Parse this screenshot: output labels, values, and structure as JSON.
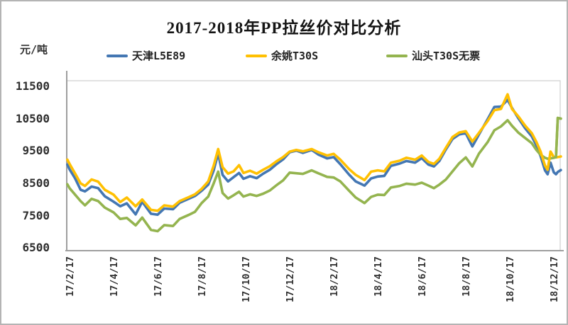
{
  "chart": {
    "title": "2017-2018年PP拉丝价对比分析",
    "unit_label": "元/吨",
    "legend": [
      {
        "label": "天津L5E89",
        "color": "#4477B3"
      },
      {
        "label": "余姚T30S",
        "color": "#FFC002"
      },
      {
        "label": "汕头T30S无票",
        "color": "#94B44F"
      }
    ]
  },
  "chart_data": {
    "type": "line",
    "title": "2017-2018年PP拉丝价对比分析",
    "ylabel": "元/吨",
    "xlabel": "",
    "ylim": [
      6500,
      11500
    ],
    "grid": false,
    "legend_position": "top",
    "y_ticks": [
      6500,
      7500,
      8500,
      9500,
      10500,
      11500
    ],
    "x_tick_labels": [
      "17/2/17",
      "17/4/17",
      "17/6/17",
      "17/8/17",
      "17/10/17",
      "17/12/17",
      "18/2/17",
      "18/4/17",
      "18/6/17",
      "18/8/17",
      "18/10/17",
      "18/12/17"
    ],
    "x_tick_months": [
      0,
      2,
      4,
      6,
      8,
      10,
      12,
      14,
      16,
      18,
      20,
      22
    ],
    "x_months": [
      -0.1,
      0,
      0.25,
      0.5,
      0.7,
      1,
      1.3,
      1.6,
      2,
      2.3,
      2.6,
      3,
      3.3,
      3.7,
      4,
      4.3,
      4.7,
      5,
      5.4,
      5.7,
      6,
      6.3,
      6.55,
      6.75,
      6.95,
      7.2,
      7.45,
      7.7,
      7.9,
      8.2,
      8.5,
      8.8,
      9.1,
      9.4,
      9.7,
      10,
      10.3,
      10.6,
      11,
      11.3,
      11.7,
      12,
      12.3,
      12.7,
      13,
      13.4,
      13.7,
      14,
      14.3,
      14.6,
      15,
      15.3,
      15.7,
      16,
      16.3,
      16.55,
      16.8,
      17.1,
      17.4,
      17.7,
      18,
      18.3,
      18.6,
      19,
      19.3,
      19.6,
      19.9,
      20.1,
      20.4,
      20.7,
      21,
      21.2,
      21.4,
      21.6,
      21.72,
      21.85,
      22,
      22.1,
      22.18,
      22.32
    ],
    "series": [
      {
        "name": "天津L5E89",
        "color": "#4477B3",
        "values": [
          9080,
          8930,
          8650,
          8300,
          8250,
          8400,
          8350,
          8100,
          7930,
          7790,
          7880,
          7540,
          7930,
          7560,
          7530,
          7720,
          7700,
          7900,
          8020,
          8110,
          8270,
          8460,
          8900,
          9430,
          8760,
          8560,
          8690,
          8820,
          8640,
          8720,
          8660,
          8800,
          8920,
          9090,
          9240,
          9460,
          9510,
          9440,
          9530,
          9390,
          9270,
          9310,
          9090,
          8770,
          8560,
          8430,
          8650,
          8710,
          8730,
          9040,
          9110,
          9190,
          9140,
          9280,
          9080,
          9020,
          9190,
          9550,
          9870,
          10010,
          10050,
          9640,
          10010,
          10490,
          10860,
          10870,
          11080,
          10830,
          10500,
          10200,
          9950,
          9680,
          9340,
          8900,
          8780,
          9140,
          8840,
          8780,
          8850,
          8910
        ]
      },
      {
        "name": "余姚T30S",
        "color": "#FFC002",
        "values": [
          9230,
          9100,
          8800,
          8500,
          8420,
          8620,
          8550,
          8300,
          8150,
          7920,
          8060,
          7790,
          8000,
          7680,
          7650,
          7820,
          7780,
          7950,
          8070,
          8160,
          8330,
          8560,
          9050,
          9560,
          9000,
          8800,
          8870,
          9060,
          8820,
          8890,
          8800,
          8920,
          9030,
          9180,
          9310,
          9480,
          9530,
          9490,
          9560,
          9460,
          9360,
          9410,
          9230,
          8940,
          8760,
          8600,
          8860,
          8900,
          8870,
          9140,
          9200,
          9290,
          9230,
          9360,
          9160,
          9100,
          9260,
          9600,
          9930,
          10070,
          10110,
          9790,
          10060,
          10430,
          10760,
          10800,
          11250,
          10800,
          10560,
          10280,
          10050,
          9790,
          9480,
          9050,
          8920,
          9480,
          9310,
          9300,
          9310,
          9330
        ]
      },
      {
        "name": "汕头T30S无票",
        "color": "#94B44F",
        "values": [
          8470,
          8350,
          8150,
          7950,
          7820,
          8020,
          7950,
          7750,
          7600,
          7400,
          7430,
          7200,
          7440,
          7060,
          7020,
          7210,
          7180,
          7400,
          7520,
          7620,
          7890,
          8090,
          8500,
          8860,
          8200,
          8030,
          8130,
          8240,
          8090,
          8160,
          8110,
          8180,
          8280,
          8440,
          8590,
          8830,
          8810,
          8790,
          8900,
          8810,
          8700,
          8680,
          8560,
          8270,
          8060,
          7890,
          8080,
          8150,
          8140,
          8370,
          8420,
          8490,
          8460,
          8520,
          8430,
          8350,
          8460,
          8620,
          8870,
          9120,
          9300,
          9020,
          9420,
          9780,
          10140,
          10260,
          10450,
          10280,
          10060,
          9900,
          9740,
          9540,
          9380,
          9290,
          9260,
          9270,
          9290,
          9310,
          10520,
          10500
        ]
      }
    ]
  }
}
